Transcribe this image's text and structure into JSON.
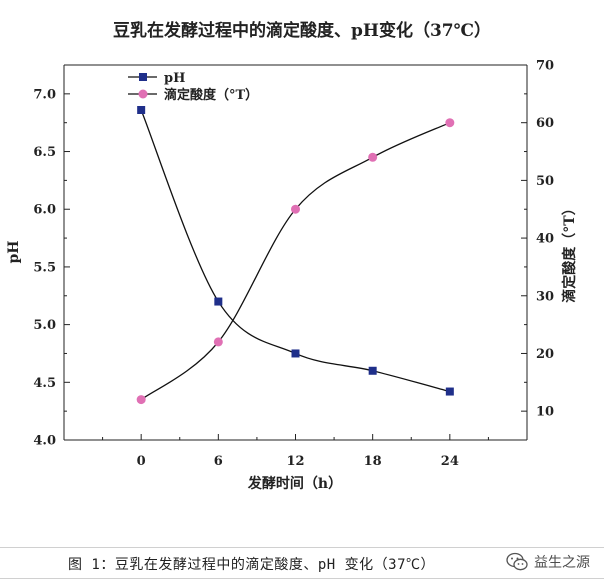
{
  "title": "豆乳在发酵过程中的滴定酸度、pH变化（37℃）",
  "chart_data": {
    "type": "line",
    "title": "豆乳在发酵过程中的滴定酸度、pH变化（37℃）",
    "xlabel": "发酵时间（h）",
    "ylabel_left": "pH",
    "ylabel_right": "滴定酸度（°T）",
    "x": [
      0,
      6,
      12,
      18,
      24
    ],
    "x_ticks": [
      "0",
      "6",
      "12",
      "18",
      "24"
    ],
    "xlim": [
      -6,
      30
    ],
    "ylim_left": [
      4.0,
      7.25
    ],
    "ylim_right": [
      5,
      70
    ],
    "left_ticks": [
      "4.0",
      "4.5",
      "5.0",
      "5.5",
      "6.0",
      "6.5",
      "7.0"
    ],
    "right_ticks": [
      "10",
      "20",
      "30",
      "40",
      "50",
      "60",
      "70"
    ],
    "legend_position": "top-left",
    "grid": false,
    "series": [
      {
        "name": "pH",
        "axis": "left",
        "marker": "square",
        "color": "#1f2f8a",
        "values": [
          6.86,
          5.2,
          4.75,
          4.6,
          4.42
        ]
      },
      {
        "name": "滴定酸度（°T）",
        "axis": "right",
        "marker": "circle",
        "color": "#e070b4",
        "values": [
          12,
          22,
          45,
          54,
          60
        ]
      }
    ]
  },
  "caption": "图 1：豆乳在发酵过程中的滴定酸度、pH 变化（37℃）",
  "watermark": {
    "icon": "wechat-icon",
    "text": "益生之源"
  }
}
